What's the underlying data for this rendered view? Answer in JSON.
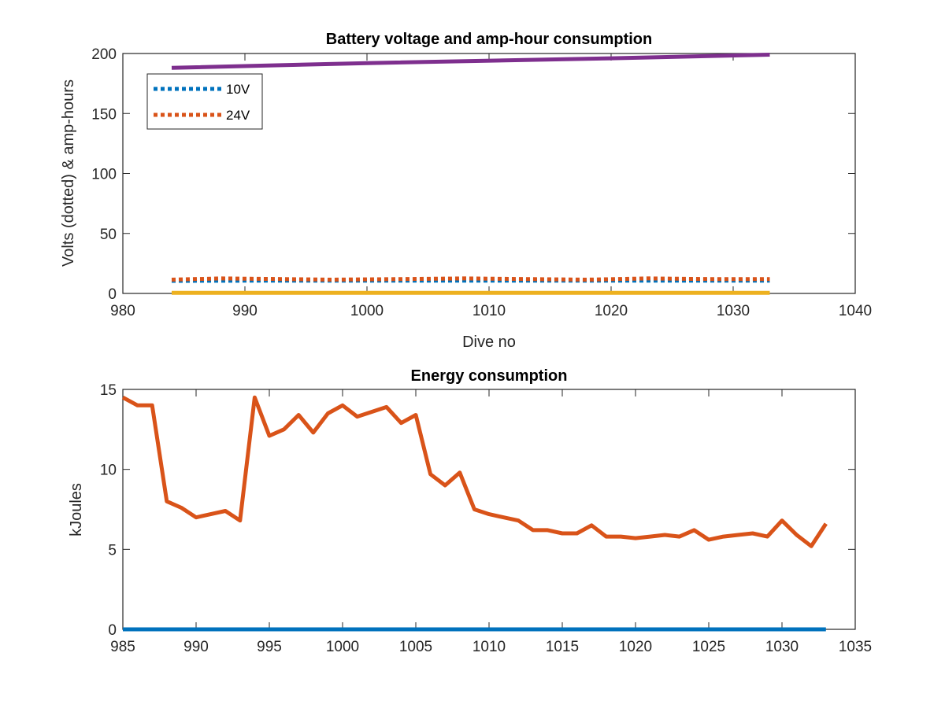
{
  "chart_data": [
    {
      "type": "line",
      "title": "Battery voltage and amp-hour consumption",
      "xlabel": "Dive no",
      "ylabel": "Volts (dotted) & amp-hours",
      "xlim": [
        980,
        1040
      ],
      "ylim": [
        0,
        200
      ],
      "xticks": [
        980,
        990,
        1000,
        1010,
        1020,
        1030,
        1040
      ],
      "yticks": [
        0,
        50,
        100,
        150,
        200
      ],
      "grid": false,
      "legend_position": "top-left",
      "series": [
        {
          "name": "10V",
          "color": "#0072BD",
          "style": "dotted",
          "x": [
            984,
            990,
            1000,
            1010,
            1020,
            1033
          ],
          "y": [
            10.5,
            10.6,
            10.6,
            10.7,
            10.6,
            10.6
          ]
        },
        {
          "name": "24V",
          "color": "#D95319",
          "style": "dotted",
          "x": [
            984,
            988,
            993,
            997,
            1003,
            1008,
            1013,
            1018,
            1023,
            1028,
            1033
          ],
          "y": [
            11.5,
            12.5,
            12.0,
            11.5,
            12.0,
            12.5,
            12.0,
            11.5,
            12.5,
            12.0,
            12.0
          ]
        },
        {
          "color": "#EDB120",
          "style": "solid",
          "x": [
            984,
            1033
          ],
          "y": [
            0.5,
            0.5
          ]
        },
        {
          "color": "#7E2F8E",
          "style": "solid",
          "x": [
            984,
            1000,
            1020,
            1033
          ],
          "y": [
            188,
            192,
            196,
            199
          ]
        }
      ]
    },
    {
      "type": "line",
      "title": "Energy consumption",
      "xlabel": "",
      "ylabel": "kJoules",
      "xlim": [
        985,
        1035
      ],
      "ylim": [
        0,
        15
      ],
      "xticks": [
        985,
        990,
        995,
        1000,
        1005,
        1010,
        1015,
        1020,
        1025,
        1030,
        1035
      ],
      "yticks": [
        0,
        5,
        10,
        15
      ],
      "grid": false,
      "series": [
        {
          "color": "#0072BD",
          "style": "solid",
          "x": [
            985,
            1033
          ],
          "y": [
            0,
            0
          ]
        },
        {
          "color": "#D95319",
          "style": "solid",
          "x": [
            985,
            986,
            987,
            988,
            989,
            990,
            991,
            992,
            993,
            994,
            995,
            996,
            997,
            998,
            999,
            1000,
            1001,
            1002,
            1003,
            1004,
            1005,
            1006,
            1007,
            1008,
            1009,
            1010,
            1011,
            1012,
            1013,
            1014,
            1015,
            1016,
            1017,
            1018,
            1019,
            1020,
            1021,
            1022,
            1023,
            1024,
            1025,
            1026,
            1027,
            1028,
            1029,
            1030,
            1031,
            1032,
            1033
          ],
          "y": [
            14.5,
            14.0,
            14.0,
            8.0,
            7.6,
            7.0,
            7.2,
            7.4,
            6.8,
            14.5,
            12.1,
            12.5,
            13.4,
            12.3,
            13.5,
            14.0,
            13.3,
            13.6,
            13.9,
            12.9,
            13.4,
            9.7,
            9.0,
            9.8,
            7.5,
            7.2,
            7.0,
            6.8,
            6.2,
            6.2,
            6.0,
            6.0,
            6.5,
            5.8,
            5.8,
            5.7,
            5.8,
            5.9,
            5.8,
            6.2,
            5.6,
            5.8,
            5.9,
            6.0,
            5.8,
            6.8,
            5.9,
            5.2,
            6.6
          ]
        }
      ]
    }
  ]
}
